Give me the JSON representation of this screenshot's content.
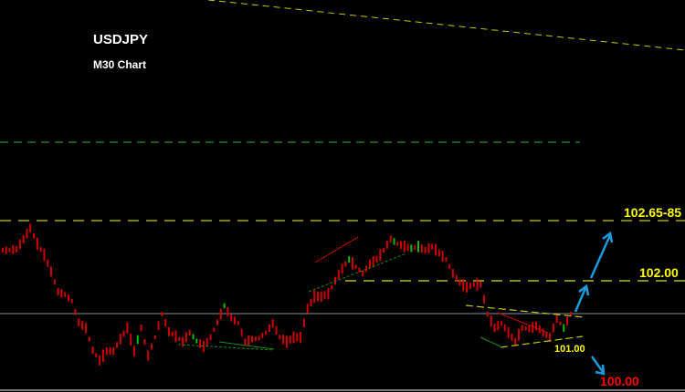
{
  "chart_data": {
    "type": "candlestick",
    "title": "USDJPY",
    "subtitle": "M30 Chart",
    "closes": [
      102.33,
      102.33,
      102.34,
      102.45,
      102.57,
      102.4,
      102.28,
      102.1,
      101.88,
      101.85,
      101.78,
      101.55,
      101.49,
      101.25,
      101.14,
      101.24,
      101.24,
      101.37,
      101.49,
      101.24,
      101.49,
      101.19,
      101.39,
      101.64,
      101.45,
      101.4,
      101.34,
      101.44,
      101.35,
      101.29,
      101.39,
      101.55,
      101.73,
      101.6,
      101.54,
      101.34,
      101.37,
      101.38,
      101.44,
      101.54,
      101.39,
      101.34,
      101.39,
      101.39,
      101.7,
      101.83,
      101.83,
      101.86,
      102.0,
      102.13,
      102.23,
      102.15,
      102.08,
      102.18,
      102.23,
      102.33,
      102.45,
      102.4,
      102.37,
      102.35,
      102.37,
      102.33,
      102.37,
      102.3,
      102.23,
      102.08,
      101.98,
      101.93,
      101.96,
      101.96,
      101.64,
      101.49,
      101.54,
      101.44,
      101.34,
      101.49,
      101.48,
      101.51,
      101.44,
      101.39,
      101.59,
      101.49,
      101.64
    ],
    "levels": [
      {
        "label": "102.65-85",
        "value": 102.65,
        "color": "#ffff00",
        "style": "dashed"
      },
      {
        "label": "102.00",
        "value": 102.0,
        "color": "#ffff00",
        "style": "dashed"
      },
      {
        "label": "101.00",
        "value": 101.0,
        "color": "#ffff00"
      },
      {
        "label": "100.00",
        "value": 100.0,
        "color": "#ff0000"
      }
    ],
    "colors": {
      "bars": "#d00000",
      "up_bars": "#00c000",
      "arrows": "#1e9be0",
      "grid_line": "#8090a0",
      "support_dashed": "#2e8b2e"
    },
    "grid": false
  }
}
